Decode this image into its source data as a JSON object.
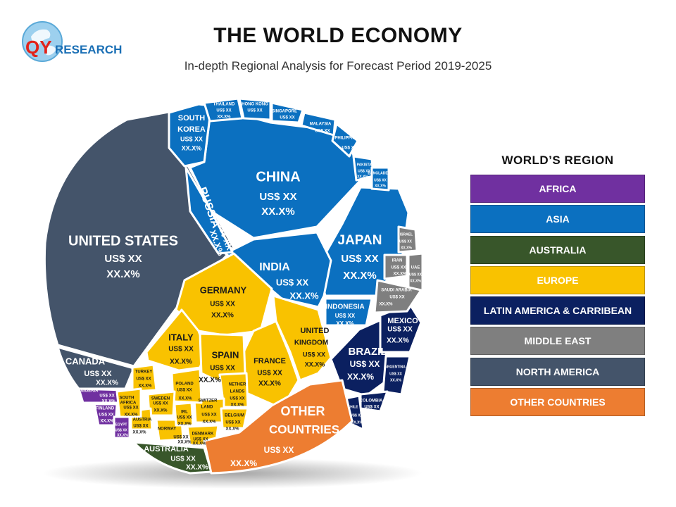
{
  "logo": {
    "text_qy": "QY",
    "text_research": "RESEARCH"
  },
  "title": "THE WORLD ECONOMY",
  "subtitle": "In-depth Regional Analysis for Forecast Period 2019-2025",
  "colors": {
    "africa": "#7030a0",
    "asia": "#0b70c0",
    "australia": "#38562a",
    "europe": "#f9c200",
    "latin_america": "#0b2060",
    "middle_east": "#7f7f7f",
    "north_america": "#44546a",
    "other": "#ed7d31"
  },
  "legend": {
    "title": "WORLD’S REGION",
    "items": [
      {
        "label": "AFRICA",
        "color": "#7030a0",
        "text": "#ffffff"
      },
      {
        "label": "ASIA",
        "color": "#0b70c0",
        "text": "#ffffff"
      },
      {
        "label": "AUSTRALIA",
        "color": "#38562a",
        "text": "#ffffff"
      },
      {
        "label": "EUROPE",
        "color": "#f9c200",
        "text": "#ffffff"
      },
      {
        "label": "LATIN AMERICA & CARRIBEAN",
        "color": "#0b2060",
        "text": "#ffffff"
      },
      {
        "label": "MIDDLE EAST",
        "color": "#7f7f7f",
        "text": "#ffffff"
      },
      {
        "label": "NORTH AMERICA",
        "color": "#44546a",
        "text": "#ffffff"
      },
      {
        "label": "OTHER COUNTRIES",
        "color": "#ed7d31",
        "text": "#ffffff"
      }
    ]
  },
  "cells": [
    {
      "name": "UNITED STATES",
      "value": "US$ XX",
      "pct": "XX.X%",
      "region": "north_america"
    },
    {
      "name": "CANADA",
      "value": "US$ XX",
      "pct": "XX.X%",
      "region": "north_america"
    },
    {
      "name": "CHINA",
      "value": "US$ XX",
      "pct": "XX.X%",
      "region": "asia"
    },
    {
      "name": "JAPAN",
      "value": "US$ XX",
      "pct": "XX.X%",
      "region": "asia"
    },
    {
      "name": "INDIA",
      "value": "US$ XX",
      "pct": "XX.X%",
      "region": "asia"
    },
    {
      "name": "RUSSIA",
      "value": "US$ XX",
      "pct": "XX.X%",
      "region": "asia"
    },
    {
      "name": "SOUTH KOREA",
      "value": "US$ XX",
      "pct": "XX.X%",
      "region": "asia"
    },
    {
      "name": "INDONESIA",
      "value": "US$ XX",
      "pct": "XX.X%",
      "region": "asia"
    },
    {
      "name": "THAILAND",
      "value": "US$ XX",
      "pct": "XX.X%",
      "region": "asia"
    },
    {
      "name": "HONG KONG",
      "value": "US$ XX",
      "pct": "XX.X%",
      "region": "asia"
    },
    {
      "name": "SINGAPORE",
      "value": "US$ XX",
      "pct": "XX.X%",
      "region": "asia"
    },
    {
      "name": "MALAYSIA",
      "value": "US$ XX",
      "pct": "XX.X%",
      "region": "asia"
    },
    {
      "name": "PHILIPPINES",
      "value": "US$ XX",
      "pct": "XX.X%",
      "region": "asia"
    },
    {
      "name": "PAKISTAN",
      "value": "US$ XX",
      "pct": "XX.X%",
      "region": "asia"
    },
    {
      "name": "BANGLADESH",
      "value": "US$ XX",
      "pct": "XX.X%",
      "region": "asia"
    },
    {
      "name": "GERMANY",
      "value": "US$ XX",
      "pct": "XX.X%",
      "region": "europe"
    },
    {
      "name": "UNITED KINGDOM",
      "value": "US$ XX",
      "pct": "XX.X%",
      "region": "europe"
    },
    {
      "name": "FRANCE",
      "value": "US$ XX",
      "pct": "XX.X%",
      "region": "europe"
    },
    {
      "name": "ITALY",
      "value": "US$ XX",
      "pct": "XX.X%",
      "region": "europe"
    },
    {
      "name": "SPAIN",
      "value": "US$ XX",
      "pct": "XX.X%",
      "region": "europe"
    },
    {
      "name": "NETHERLANDS",
      "value": "US$ XX",
      "pct": "XX.X%",
      "region": "europe"
    },
    {
      "name": "SWITZERLAND",
      "value": "US$ XX",
      "pct": "XX.X%",
      "region": "europe"
    },
    {
      "name": "BELGIUM",
      "value": "US$ XX",
      "pct": "XX.X%",
      "region": "europe"
    },
    {
      "name": "POLAND",
      "value": "US$ XX",
      "pct": "XX.X%",
      "region": "europe"
    },
    {
      "name": "SWEDEN",
      "value": "US$ XX",
      "pct": "XX.X%",
      "region": "europe"
    },
    {
      "name": "TURKEY",
      "value": "US$ XX",
      "pct": "XX.X%",
      "region": "europe"
    },
    {
      "name": "AUSTRIA",
      "value": "US$ XX",
      "pct": "XX.X%",
      "region": "europe"
    },
    {
      "name": "NORWAY",
      "value": "US$ XX",
      "pct": "XX.X%",
      "region": "europe"
    },
    {
      "name": "IRL",
      "value": "US$ XX",
      "pct": "XX.X%",
      "region": "europe"
    },
    {
      "name": "DENMARK",
      "value": "US$ XX",
      "pct": "XX.X%",
      "region": "europe"
    },
    {
      "name": "FINLAND",
      "value": "US$ XX",
      "pct": "XX.X%",
      "region": "africa"
    },
    {
      "name": "NIGERIA",
      "value": "US$ XX",
      "pct": "XX.X%",
      "region": "africa"
    },
    {
      "name": "SOUTH AFRICA",
      "value": "US$ XX",
      "pct": "XX.X%",
      "region": "europe"
    },
    {
      "name": "EGYPT",
      "value": "US$ XX",
      "pct": "XX.X%",
      "region": "africa"
    },
    {
      "name": "BRAZIL",
      "value": "US$ XX",
      "pct": "XX.X%",
      "region": "latin_america"
    },
    {
      "name": "MEXICO",
      "value": "US$ XX",
      "pct": "XX.X%",
      "region": "latin_america"
    },
    {
      "name": "ARGENTINA",
      "value": "US$ XX",
      "pct": "XX.X%",
      "region": "latin_america"
    },
    {
      "name": "COLOMBIA",
      "value": "US$ XX",
      "pct": "XX.X%",
      "region": "latin_america"
    },
    {
      "name": "CHILE",
      "value": "US$ XX",
      "pct": "XX.X%",
      "region": "latin_america"
    },
    {
      "name": "ISRAEL",
      "value": "US$ XX",
      "pct": "XX.X%",
      "region": "middle_east"
    },
    {
      "name": "IRAN",
      "value": "US$ XX",
      "pct": "XX.X%",
      "region": "middle_east"
    },
    {
      "name": "UAE",
      "value": "US$ XX",
      "pct": "XX.X%",
      "region": "middle_east"
    },
    {
      "name": "SAUDI ARABIA",
      "value": "US$ XX",
      "pct": "XX.X%",
      "region": "middle_east"
    },
    {
      "name": "AUSTRALIA",
      "value": "US$ XX",
      "pct": "XX.X%",
      "region": "australia"
    },
    {
      "name": "OTHER COUNTRIES",
      "value": "US$ XX",
      "pct": "XX.X%",
      "region": "other"
    }
  ]
}
